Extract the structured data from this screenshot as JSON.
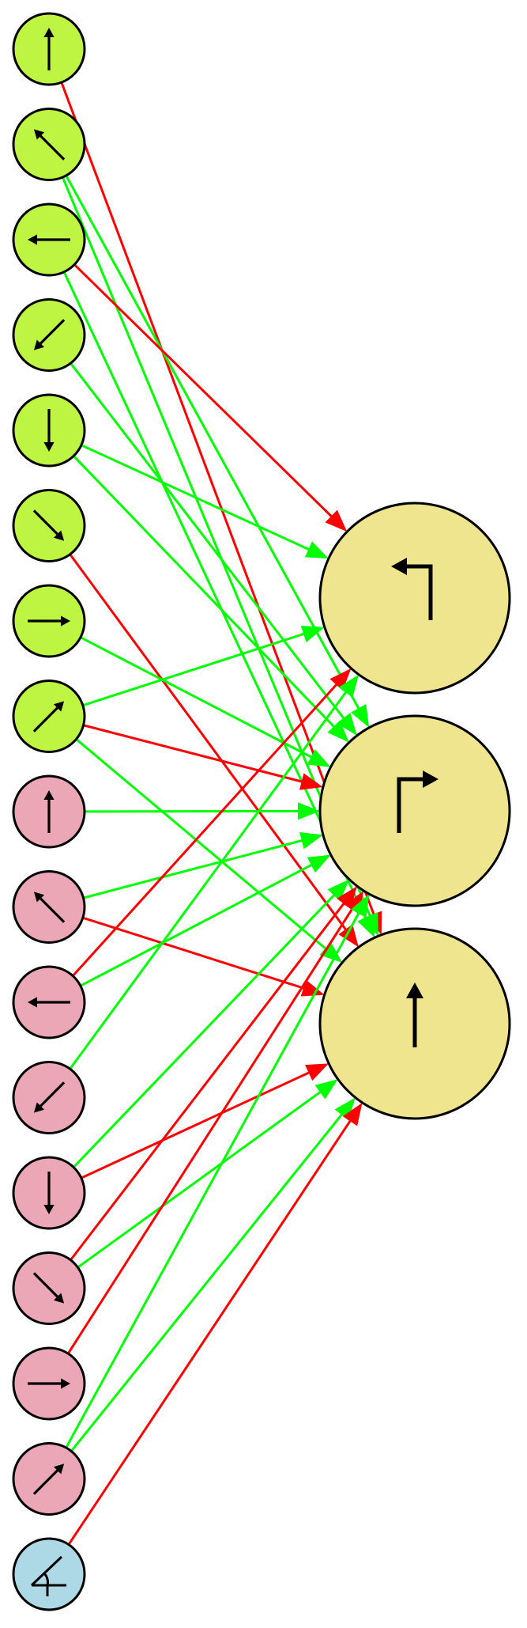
{
  "colors": {
    "background": "#ffffff",
    "sensor_green": "#bef542",
    "sensor_pink": "#eba7b5",
    "sensor_blue": "#add8e6",
    "output_yellow": "#efe58e",
    "excitatory_edge": "#00ff00",
    "inhibitory_edge": "#ff0000",
    "outline": "#000000"
  },
  "nodes": {
    "sensors": [
      {
        "id": "g-up",
        "group": "green",
        "icon": "arrow-up-icon"
      },
      {
        "id": "g-upleft",
        "group": "green",
        "icon": "arrow-up-left-icon"
      },
      {
        "id": "g-left",
        "group": "green",
        "icon": "arrow-left-icon"
      },
      {
        "id": "g-downleft",
        "group": "green",
        "icon": "arrow-down-left-icon"
      },
      {
        "id": "g-down",
        "group": "green",
        "icon": "arrow-down-icon"
      },
      {
        "id": "g-downright",
        "group": "green",
        "icon": "arrow-down-right-icon"
      },
      {
        "id": "g-right",
        "group": "green",
        "icon": "arrow-right-icon"
      },
      {
        "id": "g-upright",
        "group": "green",
        "icon": "arrow-up-right-icon"
      },
      {
        "id": "p-up",
        "group": "pink",
        "icon": "arrow-up-icon"
      },
      {
        "id": "p-upleft",
        "group": "pink",
        "icon": "arrow-up-left-icon"
      },
      {
        "id": "p-left",
        "group": "pink",
        "icon": "arrow-left-icon"
      },
      {
        "id": "p-downleft",
        "group": "pink",
        "icon": "arrow-down-left-icon"
      },
      {
        "id": "p-down",
        "group": "pink",
        "icon": "arrow-down-icon"
      },
      {
        "id": "p-downright",
        "group": "pink",
        "icon": "arrow-down-right-icon"
      },
      {
        "id": "p-right",
        "group": "pink",
        "icon": "arrow-right-icon"
      },
      {
        "id": "p-upright",
        "group": "pink",
        "icon": "arrow-up-right-icon"
      },
      {
        "id": "b-angle",
        "group": "blue",
        "icon": "angle-icon"
      }
    ],
    "outputs": [
      {
        "id": "o-turn-left",
        "icon": "turn-left-icon"
      },
      {
        "id": "o-turn-right",
        "icon": "turn-right-icon"
      },
      {
        "id": "o-forward",
        "icon": "forward-icon"
      }
    ]
  },
  "edges": [
    {
      "from": "g-up",
      "to": "o-forward",
      "sign": "inhibitory"
    },
    {
      "from": "g-upleft",
      "to": "o-turn-right",
      "sign": "excitatory"
    },
    {
      "from": "g-upleft",
      "to": "o-forward",
      "sign": "excitatory"
    },
    {
      "from": "g-left",
      "to": "o-turn-left",
      "sign": "inhibitory"
    },
    {
      "from": "g-left",
      "to": "o-forward",
      "sign": "excitatory"
    },
    {
      "from": "g-downleft",
      "to": "o-turn-right",
      "sign": "excitatory"
    },
    {
      "from": "g-down",
      "to": "o-turn-left",
      "sign": "excitatory"
    },
    {
      "from": "g-down",
      "to": "o-turn-right",
      "sign": "excitatory"
    },
    {
      "from": "g-downright",
      "to": "o-forward",
      "sign": "inhibitory"
    },
    {
      "from": "g-right",
      "to": "o-turn-right",
      "sign": "excitatory"
    },
    {
      "from": "g-upright",
      "to": "o-turn-left",
      "sign": "excitatory"
    },
    {
      "from": "g-upright",
      "to": "o-turn-right",
      "sign": "inhibitory"
    },
    {
      "from": "g-upright",
      "to": "o-forward",
      "sign": "excitatory"
    },
    {
      "from": "p-up",
      "to": "o-turn-right",
      "sign": "excitatory"
    },
    {
      "from": "p-upleft",
      "to": "o-turn-right",
      "sign": "excitatory"
    },
    {
      "from": "p-upleft",
      "to": "o-forward",
      "sign": "inhibitory"
    },
    {
      "from": "p-left",
      "to": "o-turn-left",
      "sign": "inhibitory"
    },
    {
      "from": "p-left",
      "to": "o-turn-right",
      "sign": "excitatory"
    },
    {
      "from": "p-downleft",
      "to": "o-turn-left",
      "sign": "excitatory"
    },
    {
      "from": "p-down",
      "to": "o-turn-right",
      "sign": "excitatory"
    },
    {
      "from": "p-down",
      "to": "o-forward",
      "sign": "inhibitory"
    },
    {
      "from": "p-downright",
      "to": "o-turn-right",
      "sign": "inhibitory"
    },
    {
      "from": "p-downright",
      "to": "o-forward",
      "sign": "excitatory"
    },
    {
      "from": "p-right",
      "to": "o-turn-right",
      "sign": "inhibitory"
    },
    {
      "from": "p-upright",
      "to": "o-turn-right",
      "sign": "excitatory"
    },
    {
      "from": "p-upright",
      "to": "o-forward",
      "sign": "excitatory"
    },
    {
      "from": "b-angle",
      "to": "o-forward",
      "sign": "inhibitory"
    }
  ]
}
